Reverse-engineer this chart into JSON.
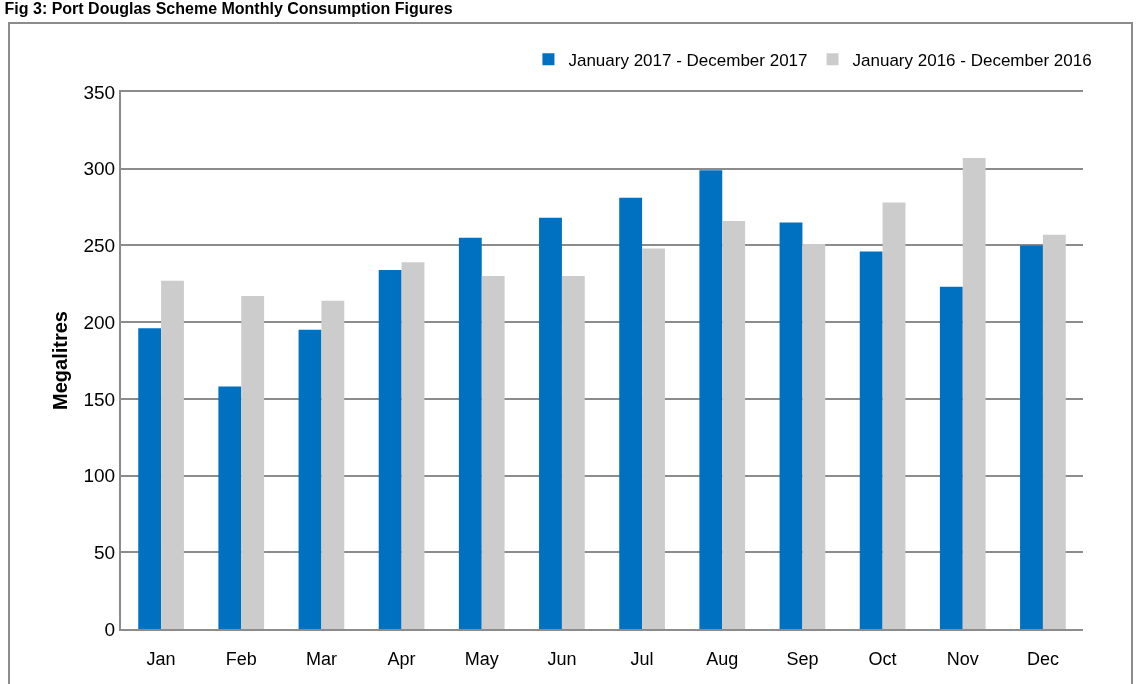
{
  "chart_data": {
    "type": "bar",
    "title": "Fig 3: Port Douglas Scheme Monthly Consumption Figures",
    "ylabel": "Megalitres",
    "categories": [
      "Jan",
      "Feb",
      "Mar",
      "Apr",
      "May",
      "Jun",
      "Jul",
      "Aug",
      "Sep",
      "Oct",
      "Nov",
      "Dec"
    ],
    "series": [
      {
        "name": "January 2017 - December 2017",
        "color": "#0070c0",
        "values": [
          196,
          158,
          195,
          234,
          255,
          268,
          281,
          299,
          265,
          246,
          223,
          250
        ]
      },
      {
        "name": "January 2016 - December 2016",
        "color": "#cccccc",
        "values": [
          227,
          217,
          214,
          239,
          230,
          230,
          248,
          266,
          251,
          278,
          307,
          257
        ]
      }
    ],
    "ylim": [
      0,
      350
    ],
    "yticks": [
      0,
      50,
      100,
      150,
      200,
      250,
      300,
      350
    ],
    "grid": "y",
    "legend": "top right"
  }
}
